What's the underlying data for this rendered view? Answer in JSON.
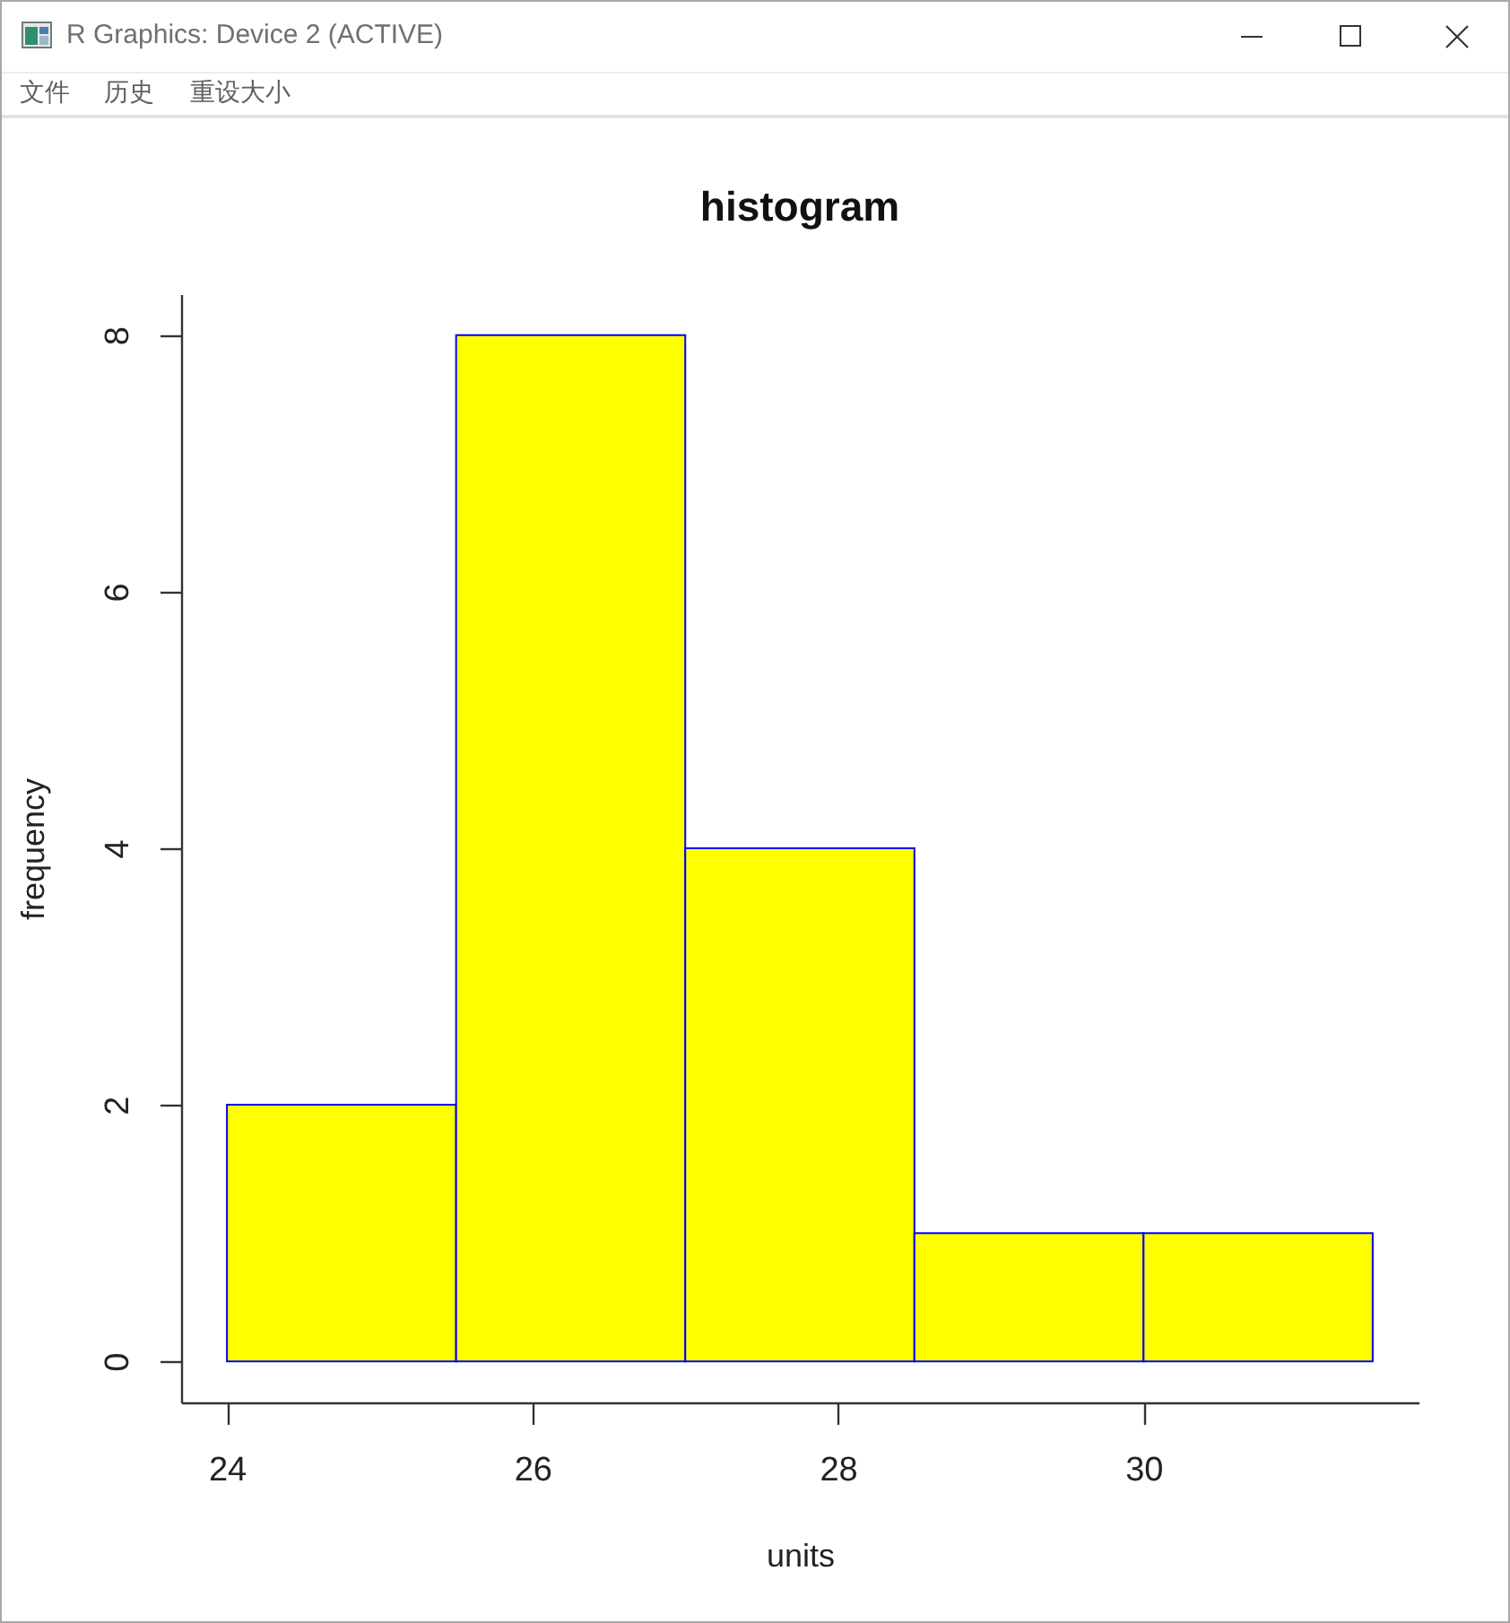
{
  "chart_data": {
    "type": "histogram",
    "title": "histogram",
    "xlabel": "units",
    "ylabel": "frequency",
    "bins": [
      24,
      25.5,
      27,
      28.5,
      30,
      31.5
    ],
    "values": [
      2,
      8,
      4,
      1,
      1
    ],
    "color": "#ffff00",
    "xlim": [
      23.7,
      31.8
    ],
    "xticks": [
      24,
      26,
      28,
      30
    ],
    "ylim": [
      -0.32,
      8.32
    ],
    "yticks": [
      0,
      2,
      4,
      6,
      8
    ],
    "grid": false,
    "annotations": [
      "R Graphics: Device 2 (ACTIVE)",
      "文件",
      "历史",
      "重设大小"
    ]
  }
}
